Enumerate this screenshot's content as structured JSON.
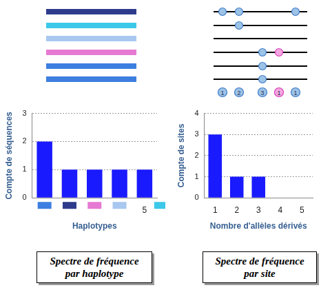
{
  "haplotypes": {
    "colors": [
      "#2e3b8c",
      "#3cc8e8",
      "#a8c8f0",
      "#e67ad2",
      "#3d7fe0",
      "#3d7fe0"
    ]
  },
  "sites_diagram": {
    "sequences": [
      [
        1,
        2,
        5
      ],
      [
        2
      ],
      [],
      [
        3,
        4
      ],
      [
        3
      ],
      [
        3
      ]
    ],
    "derived_counts": [
      1,
      2,
      3,
      1,
      1
    ],
    "colors": [
      "#9dc3e6",
      "#9dc3e6",
      "#9dc3e6",
      "#f4a6e0",
      "#9dc3e6"
    ]
  },
  "haplotype_swatches": [
    "#3d7fe0",
    "#2e3b8c",
    "#e67ad2",
    "#a8c8f0",
    "#3cc8e8"
  ],
  "chart_data": [
    {
      "type": "bar",
      "categories": [
        null,
        null,
        null,
        null,
        "5"
      ],
      "values": [
        2,
        1,
        1,
        1,
        1
      ],
      "color": "#1a1aff",
      "y_label": "Compte de séquences",
      "x_label": "Haplotypes",
      "ylim": [
        0,
        3
      ],
      "yticks": [
        0,
        1,
        2,
        3
      ],
      "grid": true
    },
    {
      "type": "bar",
      "categories": [
        1,
        2,
        3,
        4,
        5
      ],
      "values": [
        3,
        1,
        1,
        0,
        0
      ],
      "color": "#1a1aff",
      "y_label": "Compte de sites",
      "x_label": "Nombre d'allèles dérivés",
      "ylim": [
        0,
        4
      ],
      "yticks": [
        0,
        1,
        2,
        3,
        4
      ],
      "grid": true
    }
  ],
  "captions": [
    [
      "Spectre de fréquence",
      "par haplotype"
    ],
    [
      "Spectre de fréquence",
      "par site"
    ]
  ]
}
